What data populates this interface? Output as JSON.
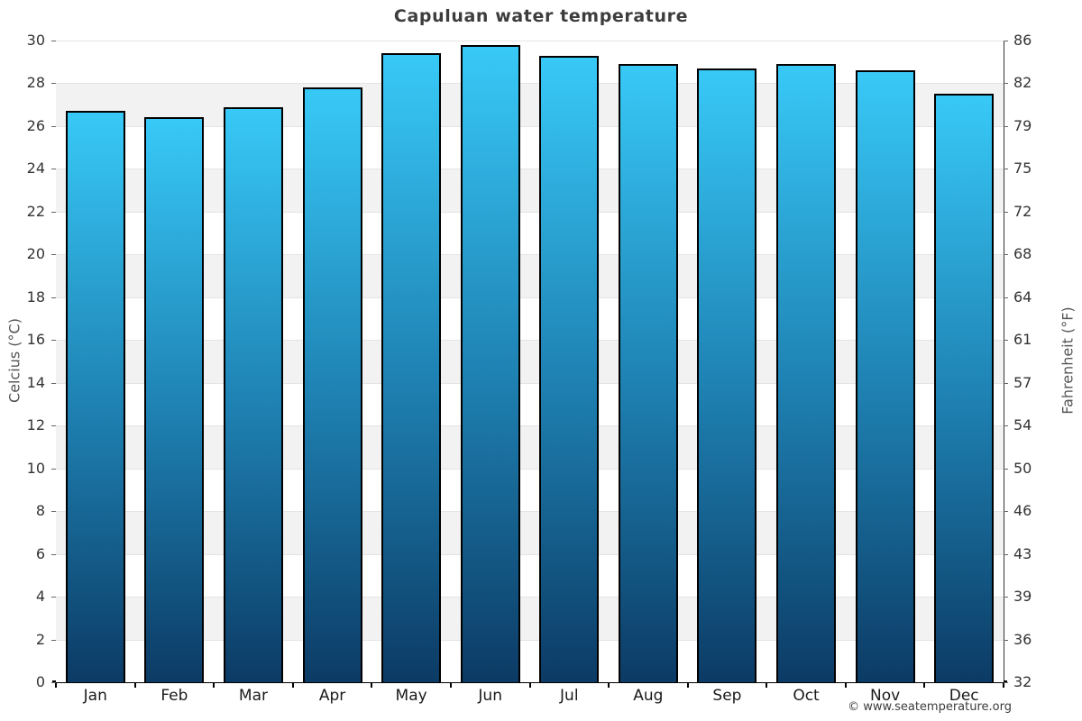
{
  "page": {
    "title": "Capuluan water temperature",
    "footer_credit": "© www.seatemperature.org"
  },
  "chart_data": {
    "type": "bar",
    "title": "Capuluan water temperature",
    "categories": [
      "Jan",
      "Feb",
      "Mar",
      "Apr",
      "May",
      "Jun",
      "Jul",
      "Aug",
      "Sep",
      "Oct",
      "Nov",
      "Dec"
    ],
    "values": [
      26.7,
      26.4,
      26.9,
      27.8,
      29.4,
      29.8,
      29.3,
      28.9,
      28.7,
      28.9,
      28.6,
      27.5
    ],
    "series_name": "Water temperature",
    "xlabel": "",
    "ylabel_left": "Celcius (°C)",
    "ylabel_right": "Fahrenheit (°F)",
    "ylim": [
      0,
      30
    ],
    "yticks_celsius": [
      30,
      28,
      26,
      24,
      22,
      20,
      18,
      16,
      14,
      12,
      10,
      8,
      6,
      4,
      2,
      0
    ],
    "yticks_fahrenheit": [
      86,
      82,
      79,
      75,
      72,
      68,
      64,
      61,
      57,
      54,
      50,
      46,
      43,
      39,
      36,
      32
    ],
    "legend": "none",
    "grid": "horizontal alternating bands every 2°C",
    "colors": {
      "bar_top": "#38c9f7",
      "bar_mid": "#1e81b2",
      "bar_bottom": "#0c3b65",
      "bar_border": "#000000",
      "band_gray": "#f2f2f2",
      "band_white": "#ffffff",
      "gridline": "#e4e4e4",
      "title_text": "#3d3d3d"
    }
  }
}
